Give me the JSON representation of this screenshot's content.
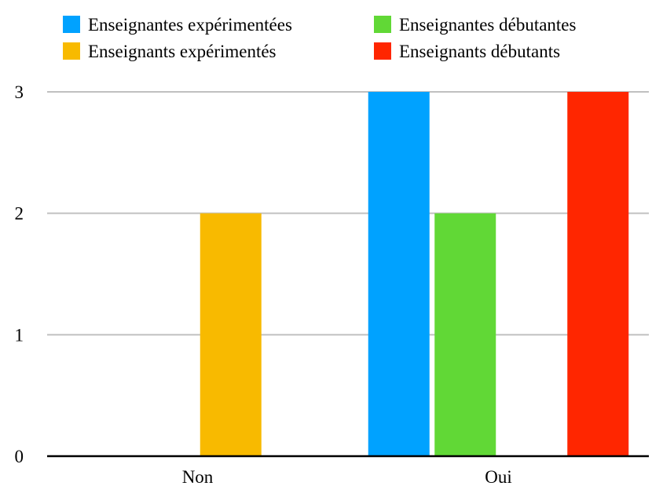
{
  "chart_data": {
    "type": "bar",
    "title": "",
    "xlabel": "",
    "ylabel": "",
    "categories": [
      "Non",
      "Oui"
    ],
    "series": [
      {
        "name": "Enseignantes expérimentées",
        "color": "#00a2ff",
        "values": [
          0,
          3
        ]
      },
      {
        "name": "Enseignantes débutantes",
        "color": "#61d836",
        "values": [
          0,
          2
        ]
      },
      {
        "name": "Enseignants expérimentés",
        "color": "#f8ba00",
        "values": [
          2,
          0
        ]
      },
      {
        "name": "Enseignants débutants",
        "color": "#ff2600",
        "values": [
          0,
          3
        ]
      }
    ],
    "ylim": [
      0,
      3
    ],
    "yticks": [
      "0",
      "1",
      "2",
      "3"
    ],
    "grid": true,
    "legend_position": "top"
  }
}
